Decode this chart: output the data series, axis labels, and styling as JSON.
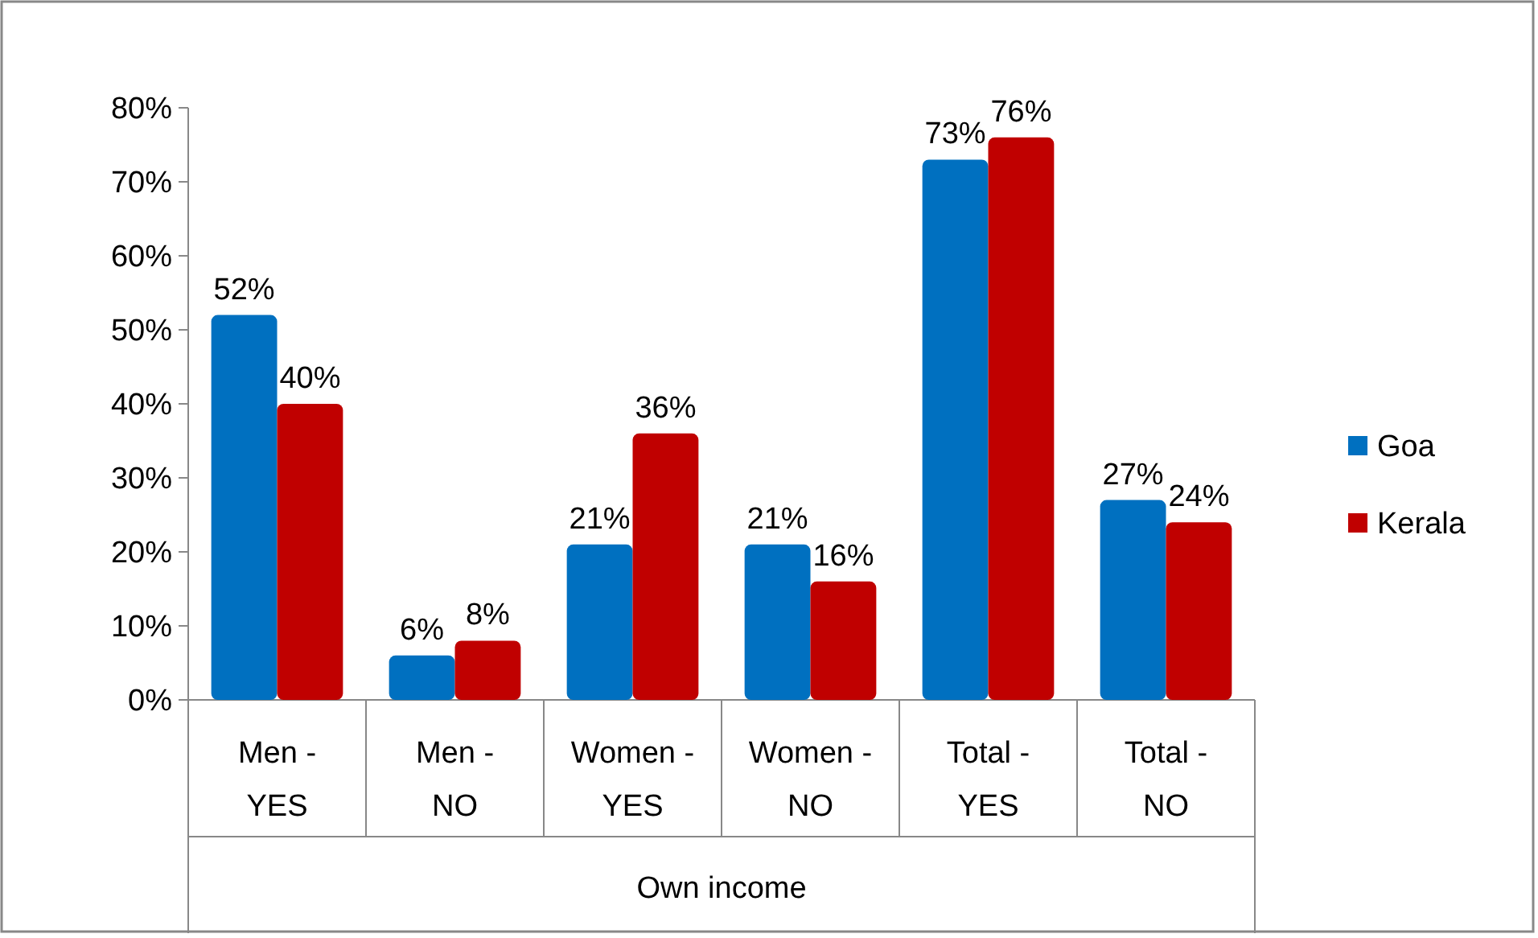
{
  "chart_data": {
    "type": "bar",
    "xlabel": "Own income",
    "categories": [
      "Men - YES",
      "Men - NO",
      "Women - YES",
      "Women - NO",
      "Total - YES",
      "Total - NO"
    ],
    "series": [
      {
        "name": "Goa",
        "color": "#0070c0",
        "values": [
          52,
          6,
          21,
          21,
          73,
          27
        ],
        "value_labels": [
          "52%",
          "6%",
          "21%",
          "21%",
          "73%",
          "27%"
        ]
      },
      {
        "name": "Kerala",
        "color": "#c00000",
        "values": [
          40,
          8,
          36,
          16,
          76,
          24
        ],
        "value_labels": [
          "40%",
          "8%",
          "36%",
          "16%",
          "76%",
          "24%"
        ]
      }
    ],
    "ylim": [
      0,
      80
    ],
    "yticks": [
      {
        "value": 0,
        "label": "0%"
      },
      {
        "value": 10,
        "label": "10%"
      },
      {
        "value": 20,
        "label": "20%"
      },
      {
        "value": 30,
        "label": "30%"
      },
      {
        "value": 40,
        "label": "40%"
      },
      {
        "value": 50,
        "label": "50%"
      },
      {
        "value": 60,
        "label": "60%"
      },
      {
        "value": 70,
        "label": "70%"
      },
      {
        "value": 80,
        "label": "80%"
      }
    ],
    "grid": false,
    "legend": "right"
  }
}
